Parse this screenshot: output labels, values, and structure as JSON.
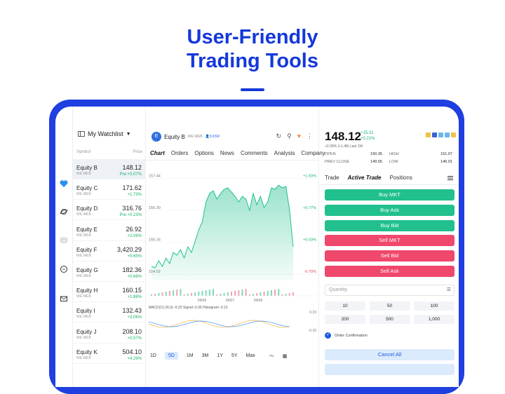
{
  "headline": {
    "line1": "User-Friendly",
    "line2": "Trading Tools"
  },
  "rail": {
    "icons": [
      "heart-icon",
      "planet-icon",
      "coins-icon",
      "chat-icon",
      "mail-icon"
    ]
  },
  "watchlist": {
    "title": "My Watchlist",
    "col_symbol": "Symbol",
    "col_price": "Price",
    "rows": [
      {
        "name": "Equity B",
        "sub": "WE.WEB",
        "price": "148.12",
        "change": "Pre:+0.07%"
      },
      {
        "name": "Equity C",
        "sub": "WE.WEB",
        "price": "171.62",
        "change": "+1.73%"
      },
      {
        "name": "Equity D",
        "sub": "WE.WEB",
        "price": "316.76",
        "change": "Pre:+0.23%"
      },
      {
        "name": "Equity E",
        "sub": "WE.WEB",
        "price": "26.92",
        "change": "+2.06%"
      },
      {
        "name": "Equity F",
        "sub": "WE.WEB",
        "price": "3,420.29",
        "change": "+0.65%"
      },
      {
        "name": "Equity G",
        "sub": "WE.WEB",
        "price": "182.36",
        "change": "+0.66%"
      },
      {
        "name": "Equity H",
        "sub": "WE.WEB",
        "price": "160.15",
        "change": "+1.88%"
      },
      {
        "name": "Equity I",
        "sub": "WE.WEB",
        "price": "132.43",
        "change": "+3.06%"
      },
      {
        "name": "Equity J",
        "sub": "WE.WEB",
        "price": "208.10",
        "change": "+0.57%"
      },
      {
        "name": "Equity K",
        "sub": "WE.WEB",
        "price": "504.10",
        "change": "+4.26%"
      }
    ]
  },
  "chart": {
    "logo_letter": "E",
    "name": "Equity B",
    "sub": "WE.WEB",
    "badge": "8.65M",
    "tabs": [
      "Chart",
      "Orders",
      "Options",
      "News",
      "Comments",
      "Analysis",
      "Company"
    ],
    "periods": [
      "1D",
      "5D",
      "1M",
      "3M",
      "1Y",
      "5Y",
      "Max"
    ],
    "active_period": "5D"
  },
  "chart_data": {
    "type": "area",
    "y_ticks": [
      "157.44",
      "156.30",
      "155.16",
      "154.02"
    ],
    "y_pct_ticks": [
      "+1.50%",
      "+0.77%",
      "+0.03%",
      "-0.70%"
    ],
    "x_ticks": [
      "09/06",
      "09/07",
      "09/08"
    ],
    "ylim": [
      153.8,
      157.6
    ],
    "values": [
      154.3,
      154.25,
      154.5,
      154.3,
      154.6,
      154.4,
      154.8,
      154.7,
      154.9,
      154.6,
      155.0,
      154.8,
      155.2,
      155.6,
      155.9,
      156.6,
      156.9,
      157.0,
      156.7,
      156.9,
      157.05,
      157.1,
      156.95,
      156.8,
      156.6,
      156.8,
      156.7,
      156.3,
      156.9,
      156.5,
      156.8,
      156.4,
      156.6,
      157.1,
      157.05,
      157.2,
      157.1,
      157.15,
      156.3,
      155.0
    ],
    "macd_label": "MACD(12,26,9)",
    "macd_values": {
      "macd": "-0.23",
      "signal": "Signal:-0.36",
      "histogram": "Histogram:-0.13"
    },
    "macd_ticks": [
      "0.33",
      "-0.33"
    ]
  },
  "trade": {
    "price": "148.12",
    "change_abs": "+15.21",
    "change_pct": "+0.21%",
    "last": "+2.09% (+1.48) Last 1W",
    "stats": [
      {
        "label": "OPEN",
        "value": "150.35"
      },
      {
        "label": "HIGH",
        "value": "151.07"
      },
      {
        "label": "PREV CLOSE",
        "value": "149.55"
      },
      {
        "label": "LOW",
        "value": "146.91"
      }
    ],
    "tabs": [
      "Trade",
      "Active Trade",
      "Positions"
    ],
    "buttons": [
      {
        "label": "Buy MKT",
        "kind": "buy"
      },
      {
        "label": "Buy Ask",
        "kind": "buy"
      },
      {
        "label": "Buy Bid",
        "kind": "buy"
      },
      {
        "label": "Sell MKT",
        "kind": "sell"
      },
      {
        "label": "Sell Bid",
        "kind": "sell"
      },
      {
        "label": "Sell Ask",
        "kind": "sell"
      }
    ],
    "quantity_placeholder": "Quantity",
    "quantities": [
      "10",
      "50",
      "100",
      "200",
      "500",
      "1,000"
    ],
    "order_confirmation": "Order Confirmation",
    "cancel_all": "Cancel All",
    "colors": {
      "buy": "#21c08e",
      "sell": "#f0476c",
      "accent": "#1538d9"
    }
  }
}
